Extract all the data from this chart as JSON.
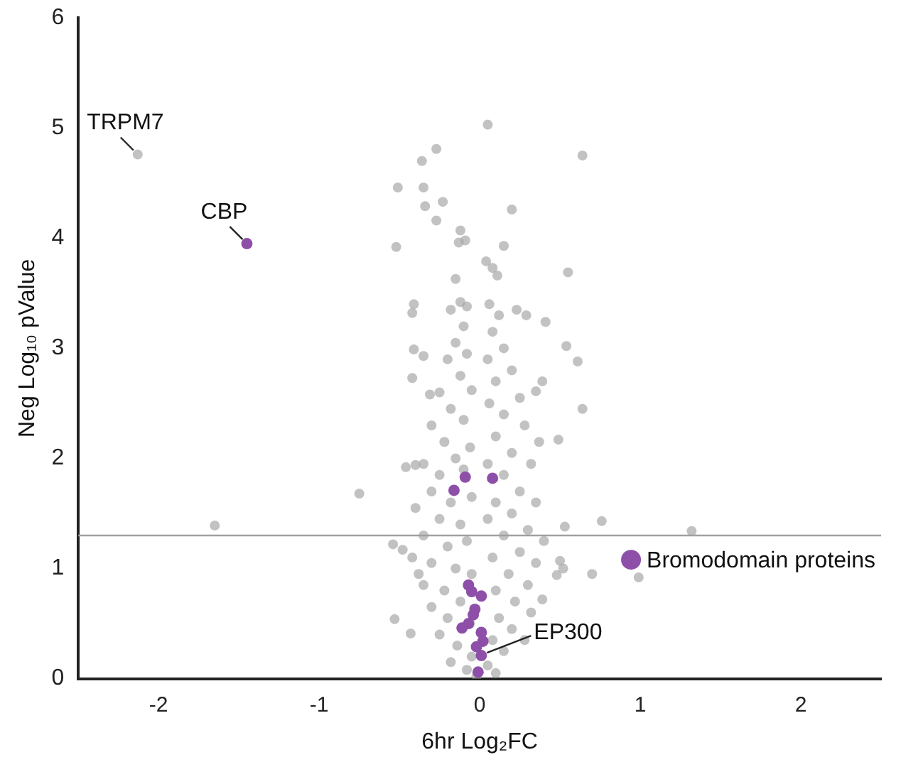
{
  "chart_data": {
    "type": "scatter",
    "xlabel": "6hr Log₂FC",
    "ylabel": "Neg Log₁₀ pValue",
    "xlim": [
      -2.5,
      2.5
    ],
    "xticks": [
      -2,
      -1,
      0,
      1,
      2
    ],
    "ylim": [
      0,
      6
    ],
    "yticks": [
      0,
      1,
      2,
      3,
      4,
      5,
      6
    ],
    "grid": false,
    "legend": "right",
    "marker": "circle",
    "ref_lines": [
      {
        "axis": "y",
        "value": 1.3,
        "color": "#a0a0a0"
      }
    ],
    "annotations": [
      {
        "text": "TRPM7",
        "x": -2.13,
        "y": 4.76
      },
      {
        "text": "CBP",
        "x": -1.45,
        "y": 3.95
      },
      {
        "text": "EP300",
        "x": 0.01,
        "y": 0.21
      }
    ],
    "series": [
      {
        "color": "#a6a6a6",
        "x": [
          -2.13,
          0.05,
          -0.27,
          -0.36,
          0.64,
          -0.51,
          -0.35,
          -0.23,
          -0.34,
          0.2,
          -0.27,
          -0.12,
          -0.13,
          -0.09,
          -0.52,
          0.15,
          0.04,
          0.08,
          0.11,
          0.55,
          -0.15,
          -0.41,
          -0.42,
          0.41,
          0.29,
          0.23,
          -0.41,
          -0.35,
          0.54,
          0.61,
          -0.42,
          0.39,
          0.35,
          0.64,
          -0.31,
          0.37,
          0.49,
          -0.46,
          -0.4,
          -0.75,
          0.76,
          0.53,
          -0.54,
          -0.48,
          0.7,
          0.5,
          0.52,
          0.48,
          0.39,
          -0.53,
          -0.43,
          -0.38,
          -1.65,
          1.32,
          0.99,
          -0.12,
          -0.08,
          -0.18,
          -0.1,
          -0.15,
          -0.2,
          -0.08,
          -0.12,
          -0.25,
          -0.05,
          -0.18,
          -0.1,
          -0.3,
          -0.22,
          -0.06,
          -0.15,
          -0.35,
          -0.25,
          -0.1,
          -0.3,
          -0.18,
          -0.05,
          -0.4,
          -0.25,
          -0.12,
          -0.35,
          -0.2,
          -0.08,
          -0.42,
          -0.3,
          -0.15,
          -0.05,
          -0.35,
          -0.22,
          -0.12,
          -0.3,
          -0.2,
          -0.06,
          -0.25,
          -0.14,
          -0.05,
          -0.18,
          -0.08,
          -0.02,
          0.06,
          0.12,
          0.08,
          0.15,
          0.05,
          0.2,
          0.1,
          0.25,
          0.06,
          0.15,
          0.28,
          0.1,
          0.2,
          0.32,
          0.05,
          0.15,
          0.25,
          0.1,
          0.35,
          0.2,
          0.05,
          0.3,
          0.15,
          0.4,
          0.25,
          0.08,
          0.35,
          0.18,
          0.3,
          0.1,
          0.22,
          0.32,
          0.12,
          0.2,
          0.28,
          0.08,
          0.15,
          0.05,
          0.1
        ],
        "values": [
          4.76,
          5.03,
          4.81,
          4.7,
          4.75,
          4.46,
          4.46,
          4.33,
          4.29,
          4.26,
          4.16,
          4.07,
          3.96,
          3.98,
          3.92,
          3.93,
          3.79,
          3.73,
          3.66,
          3.69,
          3.63,
          3.4,
          3.32,
          3.24,
          3.3,
          3.35,
          2.99,
          2.93,
          3.02,
          2.88,
          2.73,
          2.7,
          2.61,
          2.45,
          2.58,
          2.15,
          2.17,
          1.92,
          1.94,
          1.68,
          1.43,
          1.38,
          1.22,
          1.17,
          0.95,
          1.07,
          1.0,
          0.94,
          0.72,
          0.54,
          0.41,
          0.95,
          1.39,
          1.34,
          0.92,
          3.42,
          3.38,
          3.35,
          3.2,
          3.05,
          2.9,
          2.95,
          2.75,
          2.6,
          2.62,
          2.45,
          2.35,
          2.3,
          2.15,
          2.1,
          2.0,
          1.95,
          1.85,
          1.9,
          1.7,
          1.6,
          1.65,
          1.55,
          1.45,
          1.4,
          1.3,
          1.2,
          1.25,
          1.1,
          1.05,
          1.0,
          0.95,
          0.85,
          0.8,
          0.7,
          0.65,
          0.55,
          0.5,
          0.4,
          0.3,
          0.2,
          0.15,
          0.08,
          0.02,
          3.4,
          3.3,
          3.15,
          3.0,
          2.9,
          2.8,
          2.7,
          2.55,
          2.5,
          2.4,
          2.3,
          2.2,
          2.05,
          1.95,
          1.95,
          1.85,
          1.7,
          1.6,
          1.6,
          1.5,
          1.45,
          1.35,
          1.3,
          1.25,
          1.15,
          1.1,
          1.05,
          0.95,
          0.85,
          0.8,
          0.7,
          0.6,
          0.55,
          0.45,
          0.35,
          0.35,
          0.25,
          0.12,
          0.05
        ]
      },
      {
        "name": "Bromodomain proteins",
        "color": "#8e4fa8",
        "x": [
          -1.45,
          -0.09,
          0.08,
          -0.16,
          -0.07,
          -0.05,
          0.01,
          -0.03,
          -0.04,
          -0.07,
          -0.11,
          0.01,
          0.02,
          -0.02,
          0.01,
          -0.01
        ],
        "values": [
          3.95,
          1.83,
          1.82,
          1.71,
          0.85,
          0.79,
          0.75,
          0.63,
          0.58,
          0.5,
          0.46,
          0.42,
          0.34,
          0.29,
          0.21,
          0.06
        ]
      }
    ]
  }
}
